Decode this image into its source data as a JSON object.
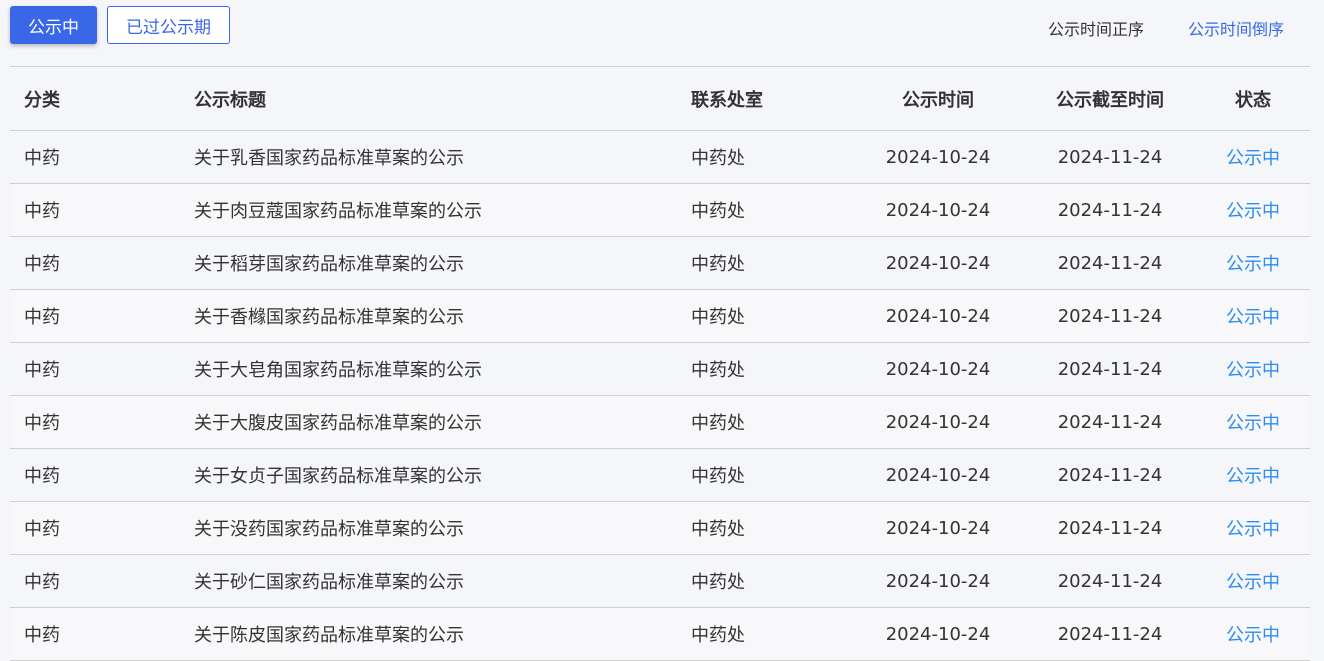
{
  "tabs": {
    "active": "公示中",
    "expired": "已过公示期"
  },
  "sort": {
    "asc": "公示时间正序",
    "desc": "公示时间倒序"
  },
  "table": {
    "headers": [
      "分类",
      "公示标题",
      "联系处室",
      "公示时间",
      "公示截至时间",
      "状态"
    ],
    "rows": [
      [
        "中药",
        "关于乳香国家药品标准草案的公示",
        "中药处",
        "2024-10-24",
        "2024-11-24",
        "公示中"
      ],
      [
        "中药",
        "关于肉豆蔻国家药品标准草案的公示",
        "中药处",
        "2024-10-24",
        "2024-11-24",
        "公示中"
      ],
      [
        "中药",
        "关于稻芽国家药品标准草案的公示",
        "中药处",
        "2024-10-24",
        "2024-11-24",
        "公示中"
      ],
      [
        "中药",
        "关于香橼国家药品标准草案的公示",
        "中药处",
        "2024-10-24",
        "2024-11-24",
        "公示中"
      ],
      [
        "中药",
        "关于大皂角国家药品标准草案的公示",
        "中药处",
        "2024-10-24",
        "2024-11-24",
        "公示中"
      ],
      [
        "中药",
        "关于大腹皮国家药品标准草案的公示",
        "中药处",
        "2024-10-24",
        "2024-11-24",
        "公示中"
      ],
      [
        "中药",
        "关于女贞子国家药品标准草案的公示",
        "中药处",
        "2024-10-24",
        "2024-11-24",
        "公示中"
      ],
      [
        "中药",
        "关于没药国家药品标准草案的公示",
        "中药处",
        "2024-10-24",
        "2024-11-24",
        "公示中"
      ],
      [
        "中药",
        "关于砂仁国家药品标准草案的公示",
        "中药处",
        "2024-10-24",
        "2024-11-24",
        "公示中"
      ],
      [
        "中药",
        "关于陈皮国家药品标准草案的公示",
        "中药处",
        "2024-10-24",
        "2024-11-24",
        "公示中"
      ]
    ]
  },
  "colors": {
    "accent": "#3a67e8",
    "status": "#2d8cf0"
  }
}
